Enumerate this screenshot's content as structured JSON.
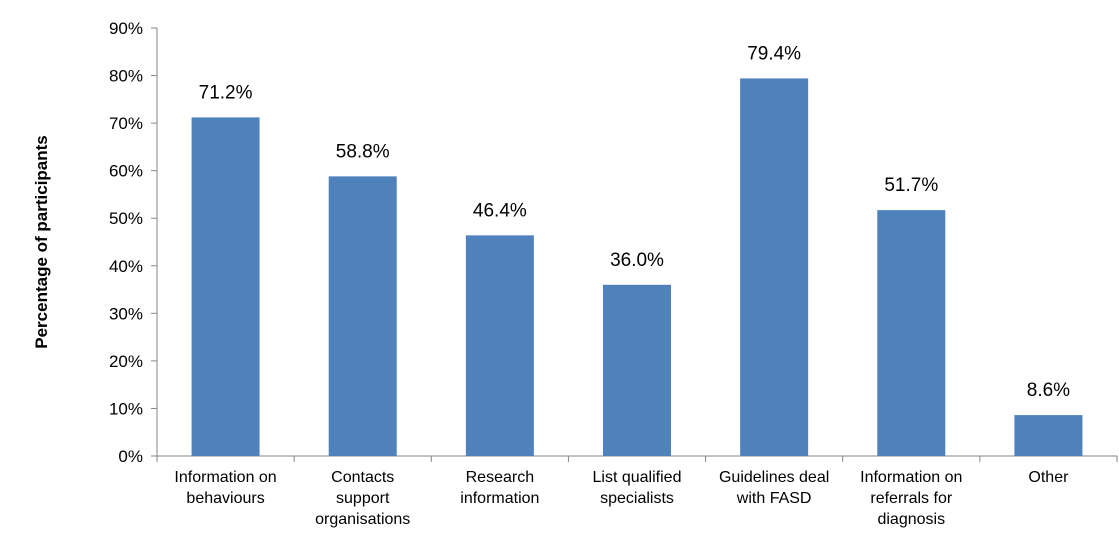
{
  "chart_data": {
    "type": "bar",
    "title": "",
    "xlabel": "",
    "ylabel": "Percentage of participants",
    "ylim": [
      0,
      90
    ],
    "yticks": [
      "0%",
      "10%",
      "20%",
      "30%",
      "40%",
      "50%",
      "60%",
      "70%",
      "80%",
      "90%"
    ],
    "categories": [
      [
        "Information on",
        "behaviours"
      ],
      [
        "Contacts",
        "support",
        "organisations"
      ],
      [
        "Research",
        "information"
      ],
      [
        "List qualified",
        "specialists"
      ],
      [
        "Guidelines deal",
        "with FASD"
      ],
      [
        "Information on",
        "referrals for",
        "diagnosis"
      ],
      [
        "Other"
      ]
    ],
    "values": [
      71.2,
      58.8,
      46.4,
      36.0,
      79.4,
      51.7,
      8.6
    ],
    "data_labels": [
      "71.2%",
      "58.8%",
      "46.4%",
      "36.0%",
      "79.4%",
      "51.7%",
      "8.6%"
    ],
    "bar_color": "#4F81BD",
    "grid": false,
    "legend": "none"
  }
}
